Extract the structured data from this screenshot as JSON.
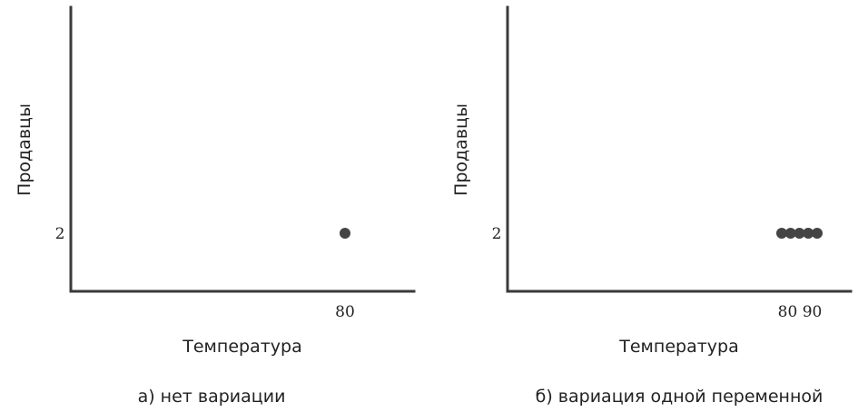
{
  "chart_data": [
    {
      "type": "scatter",
      "xlabel": "Температура",
      "ylabel": "Продавцы",
      "caption": "а) нет вариации",
      "xticks": [
        "80"
      ],
      "yticks": [
        "2"
      ],
      "points": [
        {
          "x": 80,
          "y": 2
        }
      ],
      "grid": false,
      "point_color": "#444444"
    },
    {
      "type": "scatter",
      "xlabel": "Температура",
      "ylabel": "Продавцы",
      "caption": "б) вариация одной переменной",
      "xticks": [
        "80 90"
      ],
      "yticks": [
        "2"
      ],
      "points": [
        {
          "x": 80,
          "y": 2
        },
        {
          "x": 82.5,
          "y": 2
        },
        {
          "x": 85,
          "y": 2
        },
        {
          "x": 87.5,
          "y": 2
        },
        {
          "x": 90,
          "y": 2
        }
      ],
      "grid": false,
      "point_color": "#444444"
    }
  ]
}
